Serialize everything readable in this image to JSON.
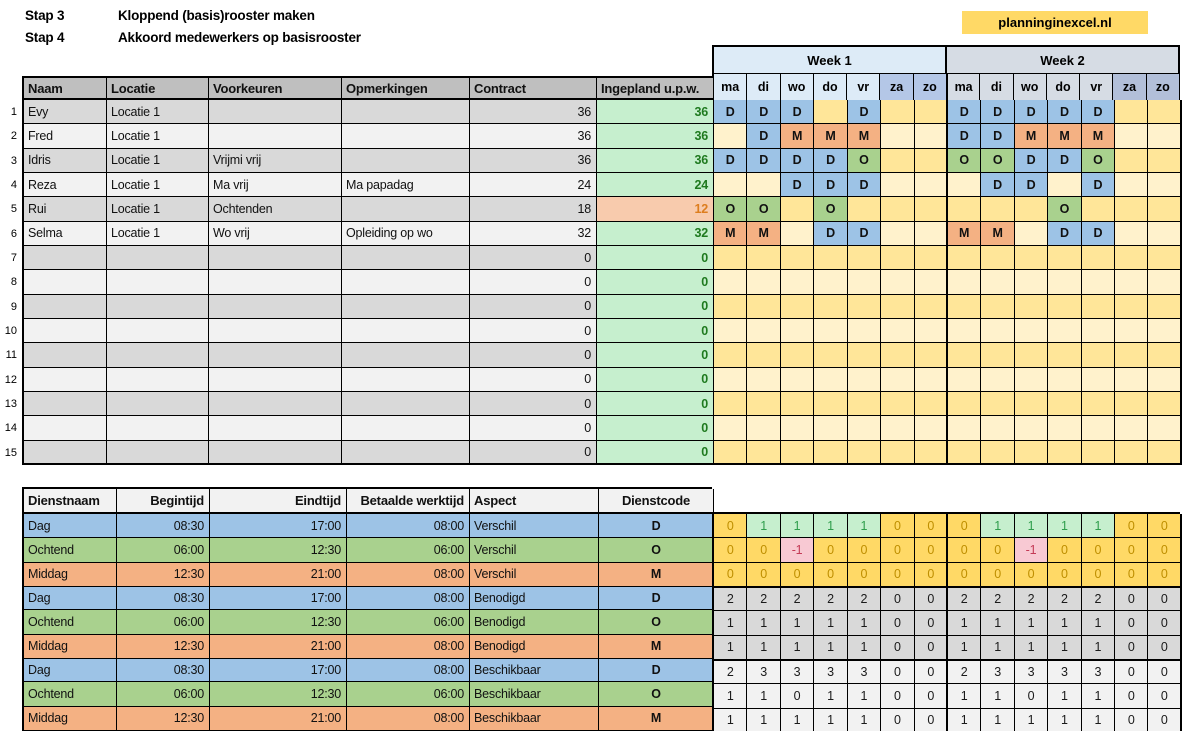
{
  "steps": [
    {
      "label": "Stap 3",
      "text": "Kloppend (basis)rooster maken"
    },
    {
      "label": "Stap 4",
      "text": "Akkoord medewerkers op basisrooster"
    }
  ],
  "badge": "planninginexcel.nl",
  "roster": {
    "headers": [
      "Naam",
      "Locatie",
      "Voorkeuren",
      "Opmerkingen",
      "Contract",
      "Ingepland u.p.w."
    ],
    "week_headers": [
      "Week 1",
      "Week 2"
    ],
    "day_headers": [
      "ma",
      "di",
      "wo",
      "do",
      "vr",
      "za",
      "zo"
    ],
    "shift_codes": {
      "D": "Dag",
      "O": "Ochtend",
      "M": "Middag"
    },
    "rows": [
      {
        "num": 1,
        "naam": "Evy",
        "locatie": "Locatie 1",
        "voorkeuren": "",
        "opmerkingen": "",
        "contract": "36",
        "ingepland": "36",
        "status": "ok",
        "week1": [
          "D",
          "D",
          "D",
          "",
          "D",
          "",
          ""
        ],
        "week2": [
          "D",
          "D",
          "D",
          "D",
          "D",
          "",
          ""
        ]
      },
      {
        "num": 2,
        "naam": "Fred",
        "locatie": "Locatie 1",
        "voorkeuren": "",
        "opmerkingen": "",
        "contract": "36",
        "ingepland": "36",
        "status": "ok",
        "week1": [
          "",
          "D",
          "M",
          "M",
          "M",
          "",
          ""
        ],
        "week2": [
          "D",
          "D",
          "M",
          "M",
          "M",
          "",
          ""
        ]
      },
      {
        "num": 3,
        "naam": "Idris",
        "locatie": "Locatie 1",
        "voorkeuren": "Vrijmi vrij",
        "opmerkingen": "",
        "contract": "36",
        "ingepland": "36",
        "status": "ok",
        "week1": [
          "D",
          "D",
          "D",
          "D",
          "O",
          "",
          ""
        ],
        "week2": [
          "O",
          "O",
          "D",
          "D",
          "O",
          "",
          ""
        ]
      },
      {
        "num": 4,
        "naam": "Reza",
        "locatie": "Locatie 1",
        "voorkeuren": "Ma vrij",
        "opmerkingen": "Ma papadag",
        "contract": "24",
        "ingepland": "24",
        "status": "ok",
        "week1": [
          "",
          "",
          "D",
          "D",
          "D",
          "",
          ""
        ],
        "week2": [
          "",
          "D",
          "D",
          "",
          "D",
          "",
          ""
        ]
      },
      {
        "num": 5,
        "naam": "Rui",
        "locatie": "Locatie 1",
        "voorkeuren": "Ochtenden",
        "opmerkingen": "",
        "contract": "18",
        "ingepland": "12",
        "status": "low",
        "week1": [
          "O",
          "O",
          "",
          "O",
          "",
          "",
          ""
        ],
        "week2": [
          "",
          "",
          "",
          "O",
          "",
          "",
          ""
        ]
      },
      {
        "num": 6,
        "naam": "Selma",
        "locatie": "Locatie 1",
        "voorkeuren": "Wo vrij",
        "opmerkingen": "Opleiding op wo",
        "contract": "32",
        "ingepland": "32",
        "status": "ok",
        "week1": [
          "M",
          "M",
          "",
          "D",
          "D",
          "",
          ""
        ],
        "week2": [
          "M",
          "M",
          "",
          "D",
          "D",
          "",
          ""
        ]
      },
      {
        "num": 7,
        "naam": "",
        "locatie": "",
        "voorkeuren": "",
        "opmerkingen": "",
        "contract": "0",
        "ingepland": "0",
        "status": "ok",
        "week1": [
          "",
          "",
          "",
          "",
          "",
          "",
          ""
        ],
        "week2": [
          "",
          "",
          "",
          "",
          "",
          "",
          ""
        ]
      },
      {
        "num": 8,
        "naam": "",
        "locatie": "",
        "voorkeuren": "",
        "opmerkingen": "",
        "contract": "0",
        "ingepland": "0",
        "status": "ok",
        "week1": [
          "",
          "",
          "",
          "",
          "",
          "",
          ""
        ],
        "week2": [
          "",
          "",
          "",
          "",
          "",
          "",
          ""
        ]
      },
      {
        "num": 9,
        "naam": "",
        "locatie": "",
        "voorkeuren": "",
        "opmerkingen": "",
        "contract": "0",
        "ingepland": "0",
        "status": "ok",
        "week1": [
          "",
          "",
          "",
          "",
          "",
          "",
          ""
        ],
        "week2": [
          "",
          "",
          "",
          "",
          "",
          "",
          ""
        ]
      },
      {
        "num": 10,
        "naam": "",
        "locatie": "",
        "voorkeuren": "",
        "opmerkingen": "",
        "contract": "0",
        "ingepland": "0",
        "status": "ok",
        "week1": [
          "",
          "",
          "",
          "",
          "",
          "",
          ""
        ],
        "week2": [
          "",
          "",
          "",
          "",
          "",
          "",
          ""
        ]
      },
      {
        "num": 11,
        "naam": "",
        "locatie": "",
        "voorkeuren": "",
        "opmerkingen": "",
        "contract": "0",
        "ingepland": "0",
        "status": "ok",
        "week1": [
          "",
          "",
          "",
          "",
          "",
          "",
          ""
        ],
        "week2": [
          "",
          "",
          "",
          "",
          "",
          "",
          ""
        ]
      },
      {
        "num": 12,
        "naam": "",
        "locatie": "",
        "voorkeuren": "",
        "opmerkingen": "",
        "contract": "0",
        "ingepland": "0",
        "status": "ok",
        "week1": [
          "",
          "",
          "",
          "",
          "",
          "",
          ""
        ],
        "week2": [
          "",
          "",
          "",
          "",
          "",
          "",
          ""
        ]
      },
      {
        "num": 13,
        "naam": "",
        "locatie": "",
        "voorkeuren": "",
        "opmerkingen": "",
        "contract": "0",
        "ingepland": "0",
        "status": "ok",
        "week1": [
          "",
          "",
          "",
          "",
          "",
          "",
          ""
        ],
        "week2": [
          "",
          "",
          "",
          "",
          "",
          "",
          ""
        ]
      },
      {
        "num": 14,
        "naam": "",
        "locatie": "",
        "voorkeuren": "",
        "opmerkingen": "",
        "contract": "0",
        "ingepland": "0",
        "status": "ok",
        "week1": [
          "",
          "",
          "",
          "",
          "",
          "",
          ""
        ],
        "week2": [
          "",
          "",
          "",
          "",
          "",
          "",
          ""
        ]
      },
      {
        "num": 15,
        "naam": "",
        "locatie": "",
        "voorkeuren": "",
        "opmerkingen": "",
        "contract": "0",
        "ingepland": "0",
        "status": "ok",
        "week1": [
          "",
          "",
          "",
          "",
          "",
          "",
          ""
        ],
        "week2": [
          "",
          "",
          "",
          "",
          "",
          "",
          ""
        ]
      }
    ]
  },
  "shifts": {
    "headers": [
      "Dienstnaam",
      "Begintijd",
      "Eindtijd",
      "Betaalde werktijd",
      "Aspect",
      "Dienstcode"
    ],
    "rows": [
      {
        "dienstnaam": "Dag",
        "begintijd": "08:30",
        "eindtijd": "17:00",
        "betaalde_werktijd": "08:00",
        "aspect": "Verschil",
        "dienstcode": "D",
        "kind": "dag"
      },
      {
        "dienstnaam": "Ochtend",
        "begintijd": "06:00",
        "eindtijd": "12:30",
        "betaalde_werktijd": "06:00",
        "aspect": "Verschil",
        "dienstcode": "O",
        "kind": "ochtend"
      },
      {
        "dienstnaam": "Middag",
        "begintijd": "12:30",
        "eindtijd": "21:00",
        "betaalde_werktijd": "08:00",
        "aspect": "Verschil",
        "dienstcode": "M",
        "kind": "middag"
      },
      {
        "dienstnaam": "Dag",
        "begintijd": "08:30",
        "eindtijd": "17:00",
        "betaalde_werktijd": "08:00",
        "aspect": "Benodigd",
        "dienstcode": "D",
        "kind": "dag"
      },
      {
        "dienstnaam": "Ochtend",
        "begintijd": "06:00",
        "eindtijd": "12:30",
        "betaalde_werktijd": "06:00",
        "aspect": "Benodigd",
        "dienstcode": "O",
        "kind": "ochtend"
      },
      {
        "dienstnaam": "Middag",
        "begintijd": "12:30",
        "eindtijd": "21:00",
        "betaalde_werktijd": "08:00",
        "aspect": "Benodigd",
        "dienstcode": "M",
        "kind": "middag"
      },
      {
        "dienstnaam": "Dag",
        "begintijd": "08:30",
        "eindtijd": "17:00",
        "betaalde_werktijd": "08:00",
        "aspect": "Beschikbaar",
        "dienstcode": "D",
        "kind": "dag"
      },
      {
        "dienstnaam": "Ochtend",
        "begintijd": "06:00",
        "eindtijd": "12:30",
        "betaalde_werktijd": "06:00",
        "aspect": "Beschikbaar",
        "dienstcode": "O",
        "kind": "ochtend"
      },
      {
        "dienstnaam": "Middag",
        "begintijd": "12:30",
        "eindtijd": "21:00",
        "betaalde_werktijd": "08:00",
        "aspect": "Beschikbaar",
        "dienstcode": "M",
        "kind": "middag"
      }
    ],
    "grid": [
      {
        "aspect": "verschil",
        "values": [
          0,
          1,
          1,
          1,
          1,
          0,
          0,
          0,
          1,
          1,
          1,
          1,
          0,
          0
        ]
      },
      {
        "aspect": "verschil",
        "values": [
          0,
          0,
          -1,
          0,
          0,
          0,
          0,
          0,
          0,
          -1,
          0,
          0,
          0,
          0
        ]
      },
      {
        "aspect": "verschil",
        "values": [
          0,
          0,
          0,
          0,
          0,
          0,
          0,
          0,
          0,
          0,
          0,
          0,
          0,
          0
        ]
      },
      {
        "aspect": "benodigd",
        "values": [
          2,
          2,
          2,
          2,
          2,
          0,
          0,
          2,
          2,
          2,
          2,
          2,
          0,
          0
        ]
      },
      {
        "aspect": "benodigd",
        "values": [
          1,
          1,
          1,
          1,
          1,
          0,
          0,
          1,
          1,
          1,
          1,
          1,
          0,
          0
        ]
      },
      {
        "aspect": "benodigd",
        "values": [
          1,
          1,
          1,
          1,
          1,
          0,
          0,
          1,
          1,
          1,
          1,
          1,
          0,
          0
        ]
      },
      {
        "aspect": "beschikbaar",
        "values": [
          2,
          3,
          3,
          3,
          3,
          0,
          0,
          2,
          3,
          3,
          3,
          3,
          0,
          0
        ]
      },
      {
        "aspect": "beschikbaar",
        "values": [
          1,
          1,
          0,
          1,
          1,
          0,
          0,
          1,
          1,
          0,
          1,
          1,
          0,
          0
        ]
      },
      {
        "aspect": "beschikbaar",
        "values": [
          1,
          1,
          1,
          1,
          1,
          0,
          0,
          1,
          1,
          1,
          1,
          1,
          0,
          0
        ]
      }
    ]
  },
  "colors": {
    "shift_dag": "#9DC3E6",
    "shift_ochtend": "#A9D18E",
    "shift_middag": "#F4B183",
    "band_dark": "#D9D9D9",
    "band_light": "#F2F2F2",
    "empty_dark": "#FFE699",
    "empty_light": "#FFF2CC",
    "ok_bg": "#C6EFCE",
    "low_bg": "#F8CBAD",
    "badge_bg": "#FFD966",
    "week1_bg": "#DDEBF7",
    "week2_bg": "#D6DCE4"
  }
}
